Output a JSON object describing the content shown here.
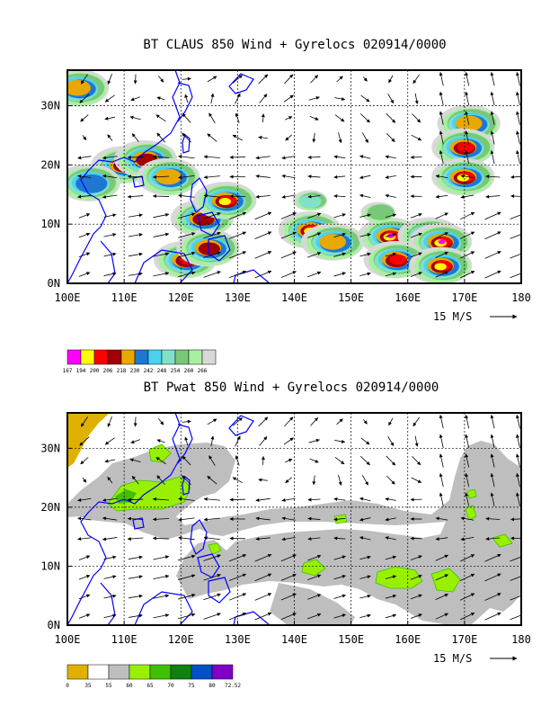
{
  "chart_data": [
    {
      "type": "heatmap",
      "title": "BT CLAUS 850 Wind + Gyrelocs 020914/0000",
      "x_ticks": [
        "100E",
        "110E",
        "120E",
        "130E",
        "140E",
        "150E",
        "160E",
        "170E",
        "180"
      ],
      "y_ticks": [
        "0N",
        "10N",
        "20N",
        "30N"
      ],
      "xlim": [
        100,
        180
      ],
      "ylim": [
        0,
        36
      ],
      "grid": true,
      "vector_key": "15 M/S",
      "colorbar_labels": [
        "167",
        "194",
        "200",
        "206",
        "218",
        "230",
        "242",
        "248",
        "254",
        "260",
        "266"
      ],
      "colorbar_colors": [
        "#ff00ff",
        "#ffff00",
        "#ff0000",
        "#a00000",
        "#e8a800",
        "#1e78d2",
        "#4ad2f0",
        "#80e0c8",
        "#78c878",
        "#a8f0a0",
        "#d8d8d8"
      ],
      "cloud_cells": [
        {
          "lon": 102,
          "lat": 33,
          "level": 4
        },
        {
          "lon": 110,
          "lat": 20,
          "level": 2
        },
        {
          "lon": 114,
          "lat": 21,
          "level": 3
        },
        {
          "lon": 118,
          "lat": 18,
          "level": 4
        },
        {
          "lon": 104,
          "lat": 17,
          "level": 5
        },
        {
          "lon": 124,
          "lat": 11,
          "level": 3
        },
        {
          "lon": 128,
          "lat": 14,
          "level": 1
        },
        {
          "lon": 121,
          "lat": 4,
          "level": 2
        },
        {
          "lon": 125,
          "lat": 6,
          "level": 3
        },
        {
          "lon": 143,
          "lat": 9,
          "level": 1
        },
        {
          "lon": 147,
          "lat": 7,
          "level": 4
        },
        {
          "lon": 157,
          "lat": 8,
          "level": 0
        },
        {
          "lon": 164,
          "lat": 8,
          "level": 2
        },
        {
          "lon": 166,
          "lat": 7,
          "level": 0
        },
        {
          "lon": 158,
          "lat": 4,
          "level": 2
        },
        {
          "lon": 166,
          "lat": 3,
          "level": 1
        },
        {
          "lon": 171,
          "lat": 27,
          "level": 4
        },
        {
          "lon": 170,
          "lat": 23,
          "level": 2
        },
        {
          "lon": 170,
          "lat": 18,
          "level": 1
        },
        {
          "lon": 143,
          "lat": 14,
          "level": 7
        },
        {
          "lon": 155,
          "lat": 12,
          "level": 8
        }
      ]
    },
    {
      "type": "heatmap",
      "title": "BT Pwat 850 Wind + Gyrelocs 020914/0000",
      "x_ticks": [
        "100E",
        "110E",
        "120E",
        "130E",
        "140E",
        "150E",
        "160E",
        "170E",
        "180"
      ],
      "y_ticks": [
        "0N",
        "10N",
        "20N",
        "30N"
      ],
      "xlim": [
        100,
        180
      ],
      "ylim": [
        0,
        36
      ],
      "grid": true,
      "vector_key": "15 M/S",
      "colorbar_labels": [
        "0",
        "35",
        "55",
        "60",
        "65",
        "70",
        "75",
        "80",
        "72.52"
      ],
      "colorbar_colors": [
        "#e0b000",
        "#ffffff",
        "#bebebe",
        "#98f000",
        "#40c000",
        "#108010",
        "#0050c8",
        "#8000c8"
      ],
      "moist_regions": [
        {
          "lon": 116,
          "lat": 21,
          "level": 3
        },
        {
          "lon": 112,
          "lat": 23,
          "level": 4
        },
        {
          "lon": 108,
          "lat": 20,
          "level": 3
        },
        {
          "lon": 116,
          "lat": 31,
          "level": 3
        },
        {
          "lon": 125,
          "lat": 12,
          "level": 3
        },
        {
          "lon": 141,
          "lat": 9,
          "level": 3
        },
        {
          "lon": 158,
          "lat": 7,
          "level": 3
        },
        {
          "lon": 166,
          "lat": 7,
          "level": 3
        },
        {
          "lon": 148,
          "lat": 17,
          "level": 3
        },
        {
          "lon": 171,
          "lat": 19,
          "level": 3
        },
        {
          "lon": 176,
          "lat": 14,
          "level": 3
        },
        {
          "lon": 171,
          "lat": 9,
          "level": 3
        }
      ]
    }
  ]
}
